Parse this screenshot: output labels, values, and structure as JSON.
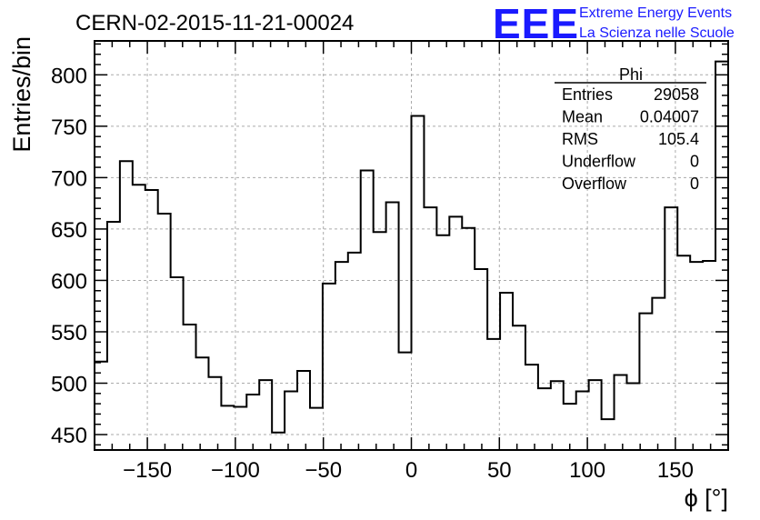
{
  "title": "CERN-02-2015-11-21-00024",
  "logo": {
    "mark": "EEE",
    "line1": "Extreme Energy Events",
    "line2": "La Scienza nelle Scuole",
    "color": "#1a1aff"
  },
  "stats": {
    "name": "Phi",
    "rows": [
      {
        "label": "Entries",
        "value": "29058"
      },
      {
        "label": "Mean",
        "value": "0.04007"
      },
      {
        "label": "RMS",
        "value": "105.4"
      },
      {
        "label": "Underflow",
        "value": "0"
      },
      {
        "label": "Overflow",
        "value": "0"
      }
    ]
  },
  "chart_data": {
    "type": "bar",
    "style": "step-histogram",
    "title": "CERN-02-2015-11-21-00024",
    "xlabel": "ϕ [°]",
    "ylabel": "Entries/bin",
    "xlim": [
      -180,
      180
    ],
    "ylim": [
      435,
      833
    ],
    "bin_width": 7.2,
    "x_ticks": [
      -150,
      -100,
      -50,
      0,
      50,
      100,
      150
    ],
    "x_tick_labels": [
      "−150",
      "−100",
      "−50",
      "0",
      "50",
      "100",
      "150"
    ],
    "y_ticks": [
      450,
      500,
      550,
      600,
      650,
      700,
      750,
      800
    ],
    "y_tick_labels": [
      "450",
      "500",
      "550",
      "600",
      "650",
      "700",
      "750",
      "800"
    ],
    "grid": true,
    "line_color": "#000000",
    "values": [
      521,
      657,
      716,
      693,
      688,
      665,
      603,
      557,
      525,
      506,
      478,
      477,
      489,
      503,
      452,
      492,
      512,
      476,
      597,
      618,
      627,
      707,
      647,
      676,
      530,
      760,
      671,
      644,
      662,
      651,
      611,
      543,
      588,
      556,
      518,
      495,
      502,
      480,
      492,
      503,
      465,
      508,
      500,
      568,
      583,
      671,
      624,
      618,
      619,
      813
    ]
  }
}
